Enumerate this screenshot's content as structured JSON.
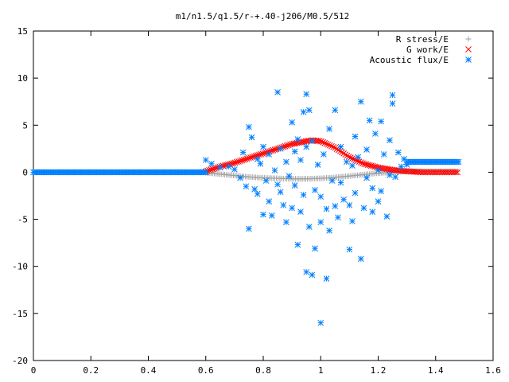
{
  "chart_data": {
    "type": "scatter",
    "title": "m1/n1.5/q1.5/r-+.40-j206/M0.5/512",
    "xlabel": "",
    "ylabel": "",
    "xlim": [
      0,
      1.6
    ],
    "ylim": [
      -20,
      15
    ],
    "x_ticks": [
      0,
      0.2,
      0.4,
      0.6,
      0.8,
      1,
      1.2,
      1.4,
      1.6
    ],
    "x_tick_labels": [
      "0",
      "0.2",
      "0.4",
      "0.6",
      "0.8",
      "1",
      "1.2",
      "1.4",
      "1.6"
    ],
    "y_ticks": [
      -20,
      -15,
      -10,
      -5,
      0,
      5,
      10,
      15
    ],
    "y_tick_labels": [
      "-20",
      "-15",
      "-10",
      "-5",
      "0",
      "5",
      "10",
      "15"
    ],
    "grid": false,
    "legend_position": "top-right",
    "series": [
      {
        "name": "R stress/E",
        "marker": "+",
        "color": "#a0a0a0",
        "points": [
          [
            0.6,
            -0.05
          ],
          [
            0.65,
            -0.2
          ],
          [
            0.7,
            -0.35
          ],
          [
            0.75,
            -0.5
          ],
          [
            0.8,
            -0.6
          ],
          [
            0.85,
            -0.65
          ],
          [
            0.9,
            -0.7
          ],
          [
            0.95,
            -0.7
          ],
          [
            1.0,
            -0.65
          ],
          [
            1.05,
            -0.55
          ],
          [
            1.1,
            -0.4
          ],
          [
            1.15,
            -0.25
          ],
          [
            1.2,
            -0.1
          ],
          [
            1.25,
            0.0
          ],
          [
            1.3,
            0.1
          ],
          [
            1.35,
            0.1
          ],
          [
            1.4,
            0.1
          ],
          [
            1.45,
            0.1
          ],
          [
            1.48,
            0.1
          ]
        ]
      },
      {
        "name": "G work/E",
        "marker": "x",
        "color": "#ff0000",
        "points": [
          [
            0.6,
            0.1
          ],
          [
            0.65,
            0.6
          ],
          [
            0.7,
            1.0
          ],
          [
            0.75,
            1.5
          ],
          [
            0.8,
            2.0
          ],
          [
            0.85,
            2.5
          ],
          [
            0.9,
            3.0
          ],
          [
            0.95,
            3.3
          ],
          [
            0.97,
            3.4
          ],
          [
            1.0,
            3.3
          ],
          [
            1.05,
            2.6
          ],
          [
            1.1,
            1.6
          ],
          [
            1.15,
            0.9
          ],
          [
            1.2,
            0.5
          ],
          [
            1.25,
            0.25
          ],
          [
            1.3,
            0.1
          ],
          [
            1.35,
            0.0
          ],
          [
            1.4,
            0.0
          ],
          [
            1.45,
            0.0
          ],
          [
            1.48,
            0.0
          ]
        ]
      },
      {
        "name": "Acoustic flux/E",
        "marker": "*",
        "color": "#0080ff",
        "baseline_left": {
          "x_range": [
            0.0,
            0.6
          ],
          "y": 0.0
        },
        "baseline_right": {
          "x_range": [
            1.3,
            1.48
          ],
          "y": 1.1
        },
        "points": [
          [
            0.6,
            1.3
          ],
          [
            0.62,
            0.9
          ],
          [
            0.65,
            0.5
          ],
          [
            0.68,
            0.6
          ],
          [
            0.7,
            0.3
          ],
          [
            0.72,
            -0.6
          ],
          [
            0.73,
            2.1
          ],
          [
            0.74,
            -1.5
          ],
          [
            0.75,
            4.8
          ],
          [
            0.75,
            -6.0
          ],
          [
            0.76,
            3.7
          ],
          [
            0.77,
            -1.8
          ],
          [
            0.78,
            1.4
          ],
          [
            0.78,
            -2.3
          ],
          [
            0.79,
            0.9
          ],
          [
            0.8,
            2.7
          ],
          [
            0.8,
            -4.5
          ],
          [
            0.81,
            -0.9
          ],
          [
            0.82,
            1.9
          ],
          [
            0.82,
            -3.1
          ],
          [
            0.83,
            -4.6
          ],
          [
            0.84,
            0.2
          ],
          [
            0.85,
            8.5
          ],
          [
            0.85,
            -1.3
          ],
          [
            0.86,
            2.5
          ],
          [
            0.86,
            -2.1
          ],
          [
            0.87,
            -3.5
          ],
          [
            0.88,
            1.1
          ],
          [
            0.88,
            -5.3
          ],
          [
            0.89,
            -0.4
          ],
          [
            0.9,
            5.3
          ],
          [
            0.9,
            -3.8
          ],
          [
            0.91,
            2.2
          ],
          [
            0.91,
            -1.4
          ],
          [
            0.92,
            3.5
          ],
          [
            0.92,
            -7.7
          ],
          [
            0.93,
            1.3
          ],
          [
            0.93,
            -4.2
          ],
          [
            0.94,
            6.4
          ],
          [
            0.94,
            -2.4
          ],
          [
            0.95,
            8.3
          ],
          [
            0.95,
            -10.6
          ],
          [
            0.95,
            2.7
          ],
          [
            0.96,
            6.6
          ],
          [
            0.96,
            -5.8
          ],
          [
            0.97,
            3.3
          ],
          [
            0.97,
            -10.9
          ],
          [
            0.98,
            -1.9
          ],
          [
            0.98,
            -8.1
          ],
          [
            0.99,
            0.8
          ],
          [
            1.0,
            -2.6
          ],
          [
            1.0,
            -16.0
          ],
          [
            1.0,
            -5.3
          ],
          [
            1.01,
            1.9
          ],
          [
            1.02,
            -3.9
          ],
          [
            1.02,
            -11.3
          ],
          [
            1.03,
            4.6
          ],
          [
            1.03,
            -6.2
          ],
          [
            1.04,
            -0.9
          ],
          [
            1.05,
            6.6
          ],
          [
            1.05,
            -3.6
          ],
          [
            1.06,
            -4.8
          ],
          [
            1.07,
            2.7
          ],
          [
            1.07,
            -1.1
          ],
          [
            1.08,
            -2.9
          ],
          [
            1.09,
            1.1
          ],
          [
            1.1,
            -3.5
          ],
          [
            1.1,
            -8.2
          ],
          [
            1.11,
            0.7
          ],
          [
            1.11,
            -5.2
          ],
          [
            1.12,
            3.8
          ],
          [
            1.12,
            -2.2
          ],
          [
            1.13,
            1.6
          ],
          [
            1.14,
            7.5
          ],
          [
            1.14,
            -9.2
          ],
          [
            1.15,
            -3.8
          ],
          [
            1.16,
            2.4
          ],
          [
            1.16,
            -0.6
          ],
          [
            1.17,
            5.5
          ],
          [
            1.18,
            -1.7
          ],
          [
            1.18,
            -4.2
          ],
          [
            1.19,
            4.1
          ],
          [
            1.2,
            0.2
          ],
          [
            1.2,
            -3.1
          ],
          [
            1.21,
            5.4
          ],
          [
            1.21,
            -2.0
          ],
          [
            1.22,
            1.9
          ],
          [
            1.23,
            -4.7
          ],
          [
            1.24,
            3.4
          ],
          [
            1.24,
            -0.3
          ],
          [
            1.25,
            7.3
          ],
          [
            1.25,
            8.2
          ],
          [
            1.26,
            -0.5
          ],
          [
            1.27,
            2.1
          ],
          [
            1.28,
            0.6
          ],
          [
            1.29,
            1.4
          ],
          [
            1.3,
            0.8
          ]
        ]
      }
    ]
  }
}
